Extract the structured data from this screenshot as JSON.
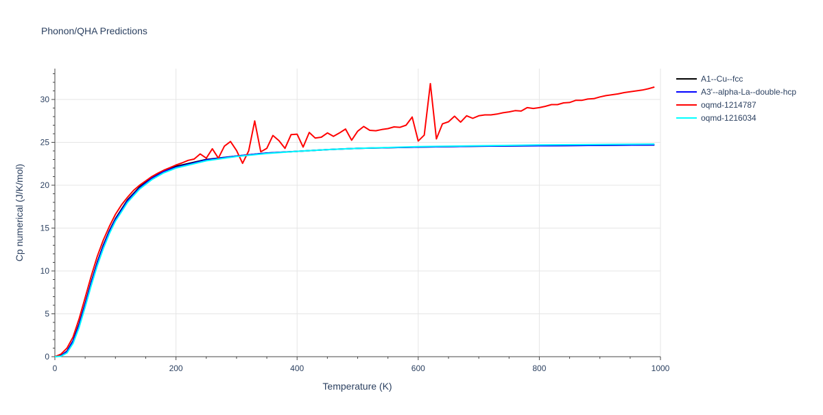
{
  "chart_data": {
    "type": "line",
    "title": "Phonon/QHA Predictions",
    "xlabel": "Temperature (K)",
    "ylabel": "Cp numerical (J/K/mol)",
    "xlim": [
      0,
      1000
    ],
    "ylim": [
      0,
      33.6
    ],
    "x_ticks": [
      0,
      200,
      400,
      600,
      800,
      1000
    ],
    "y_ticks": [
      0,
      5,
      10,
      15,
      20,
      25,
      30
    ],
    "x_tick_labels": [
      "0",
      "200",
      "400",
      "600",
      "800",
      "1000"
    ],
    "y_tick_labels": [
      "0",
      "5",
      "10",
      "15",
      "20",
      "25",
      "30"
    ],
    "grid": true,
    "legend_position": "top-right",
    "series": [
      {
        "name": "A1--Cu--fcc",
        "color": "#000000",
        "x": [
          0,
          10,
          20,
          30,
          40,
          50,
          60,
          70,
          80,
          90,
          100,
          120,
          140,
          160,
          180,
          200,
          250,
          300,
          350,
          400,
          450,
          500,
          600,
          700,
          800,
          900,
          990
        ],
        "y": [
          0,
          0.12,
          0.65,
          1.85,
          3.8,
          6.2,
          8.7,
          11.0,
          13.0,
          14.7,
          16.1,
          18.3,
          19.8,
          20.9,
          21.7,
          22.2,
          23.0,
          23.4,
          23.75,
          23.95,
          24.15,
          24.3,
          24.45,
          24.55,
          24.6,
          24.65,
          24.7
        ]
      },
      {
        "name": "A3'--alpha-La--double-hcp",
        "color": "#0000ff",
        "x": [
          0,
          10,
          20,
          30,
          40,
          50,
          60,
          70,
          80,
          90,
          100,
          120,
          140,
          160,
          180,
          200,
          250,
          300,
          350,
          400,
          450,
          500,
          600,
          700,
          800,
          900,
          990
        ],
        "y": [
          0,
          0.1,
          0.6,
          1.8,
          3.7,
          6.1,
          8.6,
          10.9,
          12.9,
          14.6,
          16.0,
          18.2,
          19.7,
          20.8,
          21.6,
          22.1,
          22.95,
          23.4,
          23.75,
          23.95,
          24.15,
          24.3,
          24.45,
          24.55,
          24.6,
          24.65,
          24.7
        ]
      },
      {
        "name": "oqmd-1214787",
        "color": "#ff0000",
        "x": [
          0,
          10,
          20,
          30,
          40,
          50,
          60,
          70,
          80,
          90,
          100,
          110,
          120,
          130,
          140,
          150,
          160,
          170,
          180,
          190,
          200,
          210,
          220,
          230,
          240,
          250,
          260,
          270,
          280,
          290,
          300,
          310,
          320,
          330,
          340,
          350,
          360,
          370,
          380,
          390,
          400,
          410,
          420,
          430,
          440,
          450,
          460,
          470,
          480,
          490,
          500,
          510,
          520,
          530,
          540,
          550,
          560,
          570,
          580,
          590,
          600,
          610,
          620,
          630,
          640,
          650,
          660,
          670,
          680,
          690,
          700,
          710,
          720,
          730,
          740,
          750,
          760,
          770,
          780,
          790,
          800,
          810,
          820,
          830,
          840,
          850,
          860,
          870,
          880,
          890,
          900,
          910,
          920,
          930,
          940,
          950,
          960,
          970,
          980,
          990
        ],
        "y": [
          0,
          0.3,
          1.0,
          2.3,
          4.4,
          6.9,
          9.4,
          11.7,
          13.6,
          15.2,
          16.6,
          17.7,
          18.6,
          19.4,
          20.0,
          20.5,
          21.0,
          21.4,
          21.75,
          22.05,
          22.35,
          22.6,
          22.9,
          23.05,
          23.65,
          23.15,
          24.25,
          23.15,
          24.55,
          25.1,
          24.05,
          22.55,
          24.0,
          27.5,
          23.9,
          24.3,
          25.8,
          25.2,
          24.3,
          25.9,
          25.95,
          24.45,
          26.15,
          25.5,
          25.6,
          26.1,
          25.7,
          26.1,
          26.55,
          25.25,
          26.3,
          26.85,
          26.4,
          26.35,
          26.5,
          26.6,
          26.8,
          26.75,
          27.0,
          27.95,
          25.15,
          25.85,
          31.85,
          25.4,
          27.15,
          27.4,
          28.05,
          27.35,
          28.1,
          27.8,
          28.1,
          28.2,
          28.2,
          28.3,
          28.45,
          28.55,
          28.7,
          28.65,
          29.05,
          28.95,
          29.05,
          29.2,
          29.4,
          29.4,
          29.6,
          29.65,
          29.9,
          29.9,
          30.05,
          30.1,
          30.3,
          30.45,
          30.55,
          30.65,
          30.8,
          30.9,
          31.0,
          31.1,
          31.25,
          31.45
        ]
      },
      {
        "name": "oqmd-1216034",
        "color": "#00ffff",
        "x": [
          0,
          10,
          20,
          30,
          40,
          50,
          60,
          70,
          80,
          90,
          100,
          120,
          140,
          160,
          180,
          200,
          250,
          300,
          350,
          400,
          450,
          500,
          600,
          700,
          800,
          900,
          990
        ],
        "y": [
          0,
          0.05,
          0.45,
          1.55,
          3.4,
          5.8,
          8.3,
          10.6,
          12.6,
          14.35,
          15.8,
          18.0,
          19.55,
          20.65,
          21.45,
          22.0,
          22.85,
          23.35,
          23.7,
          23.95,
          24.15,
          24.3,
          24.5,
          24.6,
          24.7,
          24.75,
          24.8
        ]
      }
    ]
  }
}
